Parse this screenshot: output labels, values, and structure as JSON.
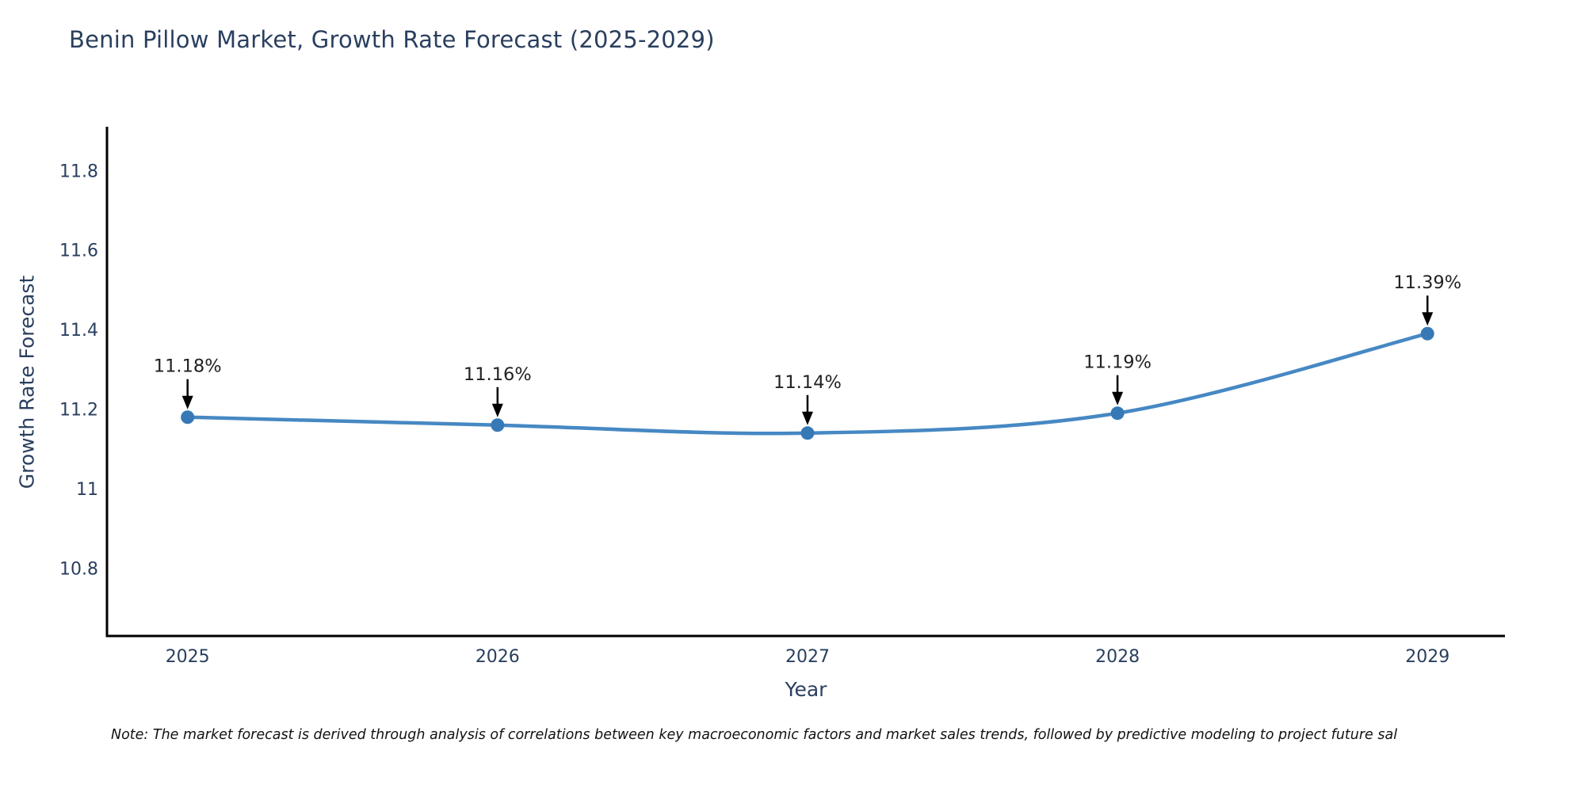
{
  "note": "Note: The market forecast is derived through analysis of correlations between key macroeconomic factors and market sales trends, followed by predictive modeling to project future sal",
  "chart_data": {
    "type": "line",
    "title": "Benin Pillow Market, Growth Rate Forecast (2025-2029)",
    "xlabel": "Year",
    "ylabel": "Growth Rate Forecast",
    "x": [
      2025,
      2026,
      2027,
      2028,
      2029
    ],
    "values": [
      11.18,
      11.16,
      11.14,
      11.19,
      11.39
    ],
    "point_labels": [
      "11.18%",
      "11.16%",
      "11.14%",
      "11.19%",
      "11.39%"
    ],
    "xtick_labels": [
      "2025",
      "2026",
      "2027",
      "2028",
      "2029"
    ],
    "ytick_values": [
      10.8,
      11.0,
      11.2,
      11.4,
      11.6,
      11.8
    ],
    "ytick_labels": [
      "10.8",
      "11",
      "11.2",
      "11.4",
      "11.6",
      "11.8"
    ],
    "xlim": [
      2024.74,
      2029.25
    ],
    "ylim": [
      10.63,
      11.91
    ],
    "grid": false,
    "legend": "none",
    "line_shape": "spline",
    "colors": {
      "line": "#4688c3",
      "marker": "#3679b6",
      "annotation_text": "#222222",
      "arrow": "#000000",
      "axis": "#000000",
      "tick_text": "#2a3f5f",
      "title_text": "#2a3f5f"
    }
  }
}
